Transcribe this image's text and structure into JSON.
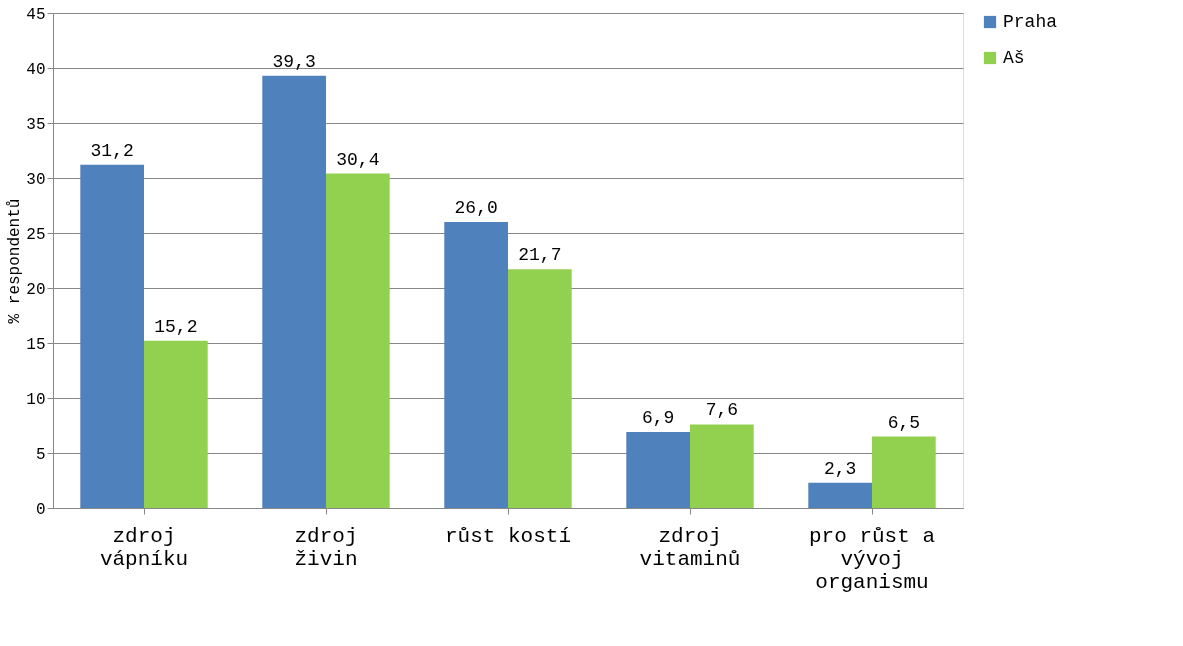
{
  "chart_data": {
    "type": "bar",
    "ylabel": "% respondentů",
    "categories": [
      "zdroj vápníku",
      "zdroj živin",
      "růst kostí",
      "zdroj vitaminů",
      "pro růst a vývoj organismu"
    ],
    "series": [
      {
        "name": "Praha",
        "color": "#4f81bd",
        "values": [
          31.2,
          39.3,
          26.0,
          6.9,
          2.3
        ],
        "value_labels": [
          "31,2",
          "39,3",
          "26,0",
          "6,9",
          "2,3"
        ]
      },
      {
        "name": "Aš",
        "color": "#92d050",
        "values": [
          15.2,
          30.4,
          21.7,
          7.6,
          6.5
        ],
        "value_labels": [
          "15,2",
          "30,4",
          "21,7",
          "7,6",
          "6,5"
        ]
      }
    ],
    "ylim": [
      0,
      45
    ],
    "yticks": [
      0,
      5,
      10,
      15,
      20,
      25,
      30,
      35,
      40,
      45
    ],
    "grid": "y",
    "legend": "right"
  }
}
